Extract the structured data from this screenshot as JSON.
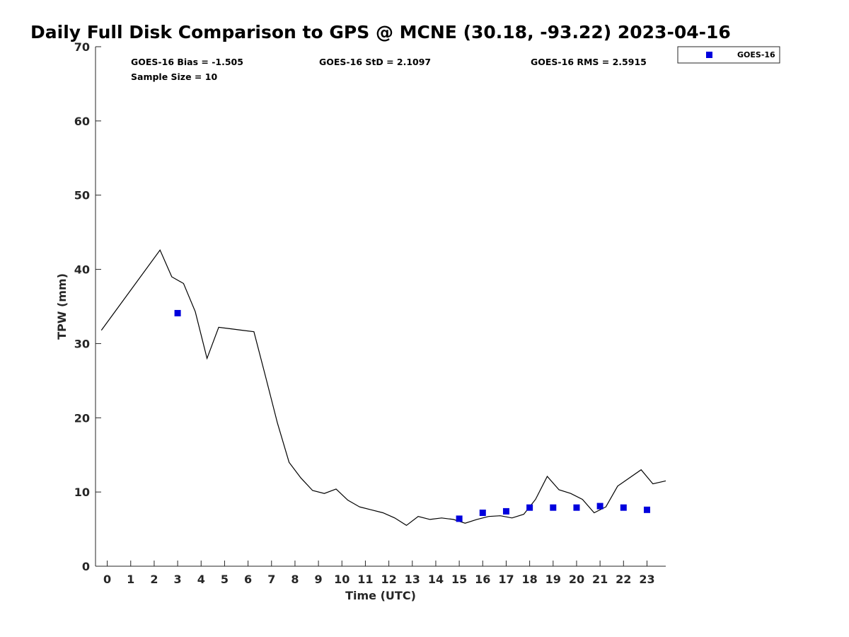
{
  "chart_data": {
    "type": "line+scatter",
    "title": "Daily Full Disk Comparison to GPS @ MCNE (30.18, -93.22) 2023-04-16",
    "xlabel": "Time (UTC)",
    "ylabel": "TPW (mm)",
    "xlim": [
      -0.5,
      23.8
    ],
    "ylim": [
      0,
      70
    ],
    "x_ticks": [
      0,
      1,
      2,
      3,
      4,
      5,
      6,
      7,
      8,
      9,
      10,
      11,
      12,
      13,
      14,
      15,
      16,
      17,
      18,
      19,
      20,
      21,
      22,
      23
    ],
    "y_ticks": [
      0,
      10,
      20,
      30,
      40,
      50,
      60,
      70
    ],
    "grid": false,
    "legend_position": "top-right, outside",
    "stats": {
      "bias": "GOES-16 Bias = -1.505",
      "std": "GOES-16 StD = 2.1097",
      "rms": "GOES-16 RMS = 2.5915",
      "sample": "Sample Size = 10"
    },
    "gps_line": {
      "color": "#000000",
      "x": [
        -0.25,
        2.25,
        2.75,
        3.25,
        3.75,
        4.25,
        4.75,
        5.25,
        5.75,
        6.25,
        6.75,
        7.25,
        7.75,
        8.25,
        8.75,
        9.25,
        9.75,
        10.25,
        10.75,
        11.25,
        11.75,
        12.25,
        12.75,
        13.25,
        13.75,
        14.25,
        14.75,
        15.25,
        15.75,
        16.25,
        16.75,
        17.25,
        17.75,
        18.25,
        18.75,
        19.25,
        19.75,
        20.25,
        20.75,
        21.25,
        21.75,
        22.25,
        22.75,
        23.25,
        23.8
      ],
      "y": [
        31.8,
        42.6,
        39.0,
        38.1,
        34.3,
        28.0,
        32.2,
        32.0,
        31.8,
        31.6,
        25.5,
        19.3,
        14.0,
        11.9,
        10.2,
        9.8,
        10.4,
        8.9,
        8.0,
        7.6,
        7.2,
        6.5,
        5.5,
        6.7,
        6.3,
        6.5,
        6.3,
        5.8,
        6.3,
        6.7,
        6.8,
        6.5,
        7.0,
        9.0,
        12.1,
        10.3,
        9.8,
        9.0,
        7.2,
        8.0,
        10.8,
        11.9,
        13.0,
        11.1,
        11.5
      ]
    },
    "series": [
      {
        "name": "GOES-16",
        "color": "#0000dd",
        "x": [
          3,
          15,
          16,
          17,
          18,
          19,
          20,
          21,
          22,
          23
        ],
        "y": [
          34.1,
          6.4,
          7.2,
          7.4,
          7.9,
          7.9,
          7.9,
          8.1,
          7.9,
          7.6
        ]
      }
    ]
  }
}
